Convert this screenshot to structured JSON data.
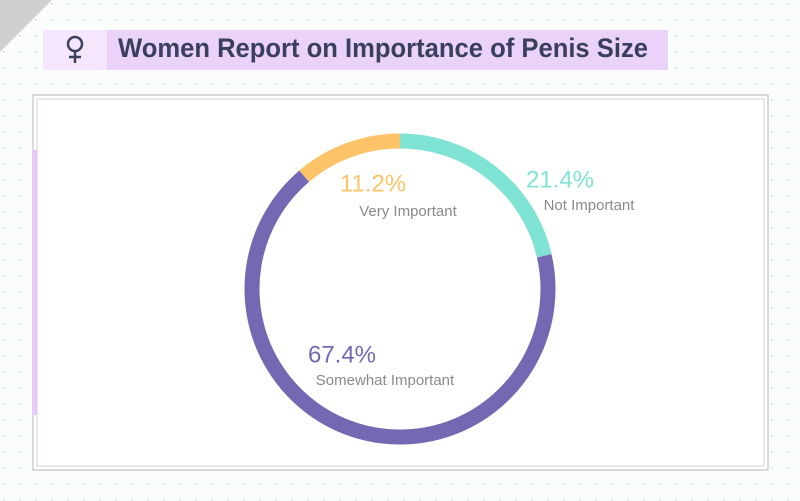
{
  "chart_data": {
    "type": "pie",
    "title": "Women Report on Importance of Penis Size",
    "categories": [
      "Not Important",
      "Somewhat Important",
      "Very Important"
    ],
    "values": [
      21.4,
      67.4,
      11.2
    ],
    "value_labels": [
      "21.4%",
      "67.4%",
      "11.2%"
    ],
    "colors": [
      "#7ee3d2",
      "#7468b3",
      "#fcc368"
    ]
  }
}
